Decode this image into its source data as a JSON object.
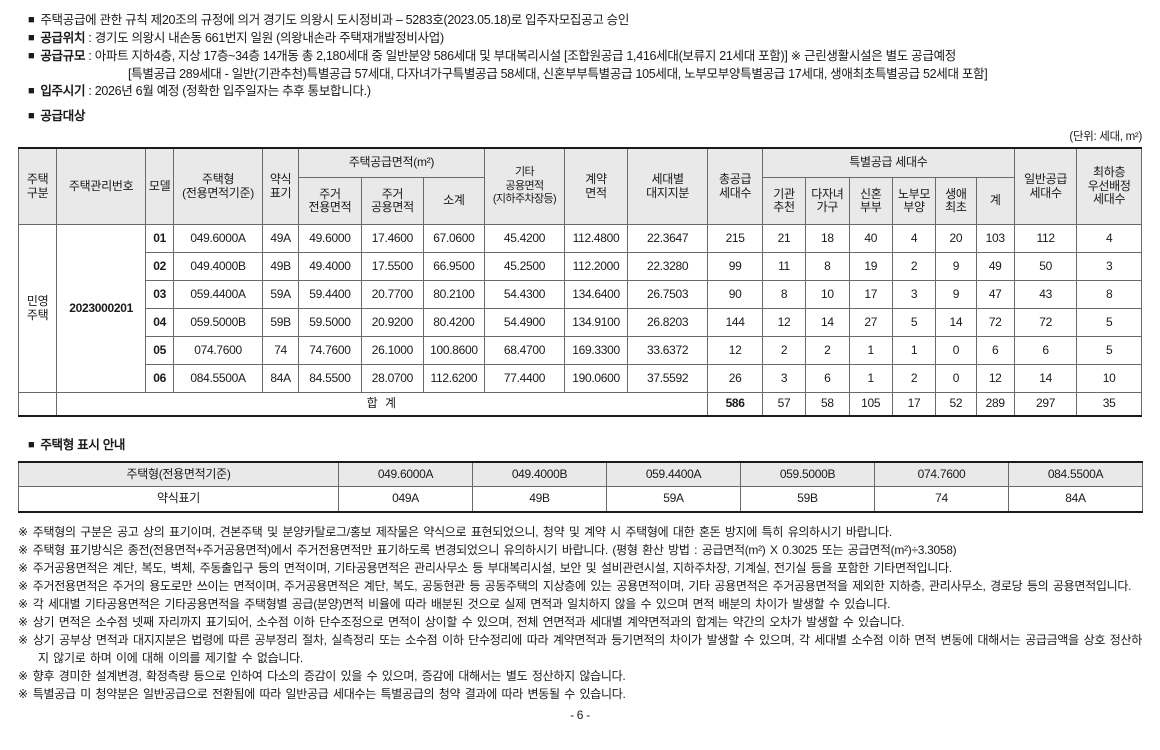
{
  "doc": {
    "unit_note": "(단위: 세대, m²)",
    "page_number": "- 6 -"
  },
  "header_bullets": [
    {
      "bold": "",
      "text": "주택공급에 관한 규칙 제20조의 규정에 의거 경기도 의왕시 도시정비과 – 5283호(2023.05.18)로 입주자모집공고 승인"
    },
    {
      "bold": "공급위치",
      "text": " : 경기도 의왕시 내손동 661번지 일원 (의왕내손라 주택재개발정비사업)"
    },
    {
      "bold": "공급규모",
      "text": " : 아파트 지하4층, 지상 17층~34층 14개동 총 2,180세대 중 일반분양 586세대 및 부대복리시설 [조합원공급 1,416세대(보류지 21세대 포함)] ※ 근린생활시설은 별도 공급예정",
      "cont": "[특별공급 289세대 - 일반(기관추천)특별공급 57세대, 다자녀가구특별공급 58세대, 신혼부부특별공급 105세대, 노부모부양특별공급 17세대, 생애최초특별공급 52세대 포함]"
    },
    {
      "bold": "입주시기",
      "text": " : 2026년 6월 예정 (정확한 입주일자는 추후 통보합니다.)"
    }
  ],
  "supply_section": {
    "title": "공급대상"
  },
  "supply_table": {
    "h": {
      "gubun": "주택\n구분",
      "mgmt": "주택관리번호",
      "model": "모델",
      "type": "주택형\n(전용면적기준)",
      "abbr": "약식\n표기",
      "supply_area_group": "주택공급면적(m²)",
      "exclusive": "주거\n전용면적",
      "common": "주거\n공용면적",
      "subtotal": "소계",
      "other": "기타\n공용면적\n(지하주차장등)",
      "contract": "계약\n면적",
      "land": "세대별\n대지지분",
      "total": "총공급\n세대수",
      "special_group": "특별공급 세대수",
      "sp1": "기관\n추천",
      "sp2": "다자녀\n가구",
      "sp3": "신혼\n부부",
      "sp4": "노부모\n부양",
      "sp5": "생애\n최초",
      "sp6": "계",
      "general": "일반공급\n세대수",
      "floor": "최하층\n우선배정\n세대수"
    },
    "housing_class": "민영\n주택",
    "management_number": "2023000201",
    "rows": [
      [
        "01",
        "049.6000A",
        "49A",
        "49.6000",
        "17.4600",
        "67.0600",
        "45.4200",
        "112.4800",
        "22.3647",
        "215",
        "21",
        "18",
        "40",
        "4",
        "20",
        "103",
        "112",
        "4"
      ],
      [
        "02",
        "049.4000B",
        "49B",
        "49.4000",
        "17.5500",
        "66.9500",
        "45.2500",
        "112.2000",
        "22.3280",
        "99",
        "11",
        "8",
        "19",
        "2",
        "9",
        "49",
        "50",
        "3"
      ],
      [
        "03",
        "059.4400A",
        "59A",
        "59.4400",
        "20.7700",
        "80.2100",
        "54.4300",
        "134.6400",
        "26.7503",
        "90",
        "8",
        "10",
        "17",
        "3",
        "9",
        "47",
        "43",
        "8"
      ],
      [
        "04",
        "059.5000B",
        "59B",
        "59.5000",
        "20.9200",
        "80.4200",
        "54.4900",
        "134.9100",
        "26.8203",
        "144",
        "12",
        "14",
        "27",
        "5",
        "14",
        "72",
        "72",
        "5"
      ],
      [
        "05",
        "074.7600",
        "74",
        "74.7600",
        "26.1000",
        "100.8600",
        "68.4700",
        "169.3300",
        "33.6372",
        "12",
        "2",
        "2",
        "1",
        "1",
        "0",
        "6",
        "6",
        "5"
      ],
      [
        "06",
        "084.5500A",
        "84A",
        "84.5500",
        "28.0700",
        "112.6200",
        "77.4400",
        "190.0600",
        "37.5592",
        "26",
        "3",
        "6",
        "1",
        "2",
        "0",
        "12",
        "14",
        "10"
      ]
    ],
    "total_row": {
      "label": "합 계",
      "total_units": "586",
      "special": [
        "57",
        "58",
        "105",
        "17",
        "52",
        "289"
      ],
      "general": "297",
      "ground_floor": "35"
    }
  },
  "type_table": {
    "title": "주택형 표시 안내",
    "row1_label": "주택형(전용면적기준)",
    "row2_label": "약식표기",
    "types": [
      "049.6000A",
      "049.4000B",
      "059.4400A",
      "059.5000B",
      "074.7600",
      "084.5500A"
    ],
    "abbrs": [
      "049A",
      "49B",
      "59A",
      "59B",
      "74",
      "84A"
    ]
  },
  "notes": [
    "주택형의 구분은 공고 상의 표기이며, 견본주택 및 분양카탈로그/홍보 제작물은 약식으로 표현되었으니, 청약 및 계약 시 주택형에 대한 혼돈 방지에 특히 유의하시기 바랍니다.",
    "주택형 표기방식은 종전(전용면적+주거공용면적)에서 주거전용면적만 표기하도록 변경되었으니 유의하시기 바랍니다. (평형 환산 방법 : 공급면적(m²) X 0.3025 또는 공급면적(m²)÷3.3058)",
    "주거공용면적은 계단, 복도, 벽체, 주동출입구 등의 면적이며, 기타공용면적은 관리사무소 등 부대복리시설, 보안 및 설비관련시설, 지하주차장, 기계실, 전기실 등을 포함한 기타면적입니다.",
    "주거전용면적은 주거의 용도로만 쓰이는 면적이며, 주거공용면적은 계단, 복도, 공동현관 등 공동주택의 지상층에 있는 공용면적이며, 기타 공용면적은 주거공용면적을 제외한 지하층, 관리사무소, 경로당 등의 공용면적입니다.",
    "각 세대별 기타공용면적은 기타공용면적을 주택형별 공급(분양)면적 비율에 따라 배분된 것으로 실제 면적과 일치하지 않을 수 있으며 면적 배분의 차이가 발생할 수 있습니다.",
    "상기 면적은 소수점 넷째 자리까지 표기되어, 소수점 이하 단수조정으로 면적이 상이할 수 있으며, 전체 연면적과 세대별 계약면적과의 합계는 약간의 오차가 발생할 수 있습니다.",
    "상기 공부상 면적과 대지지분은 법령에 따른 공부정리 절차, 실측정리 또는 소수점 이하 단수정리에 따라 계약면적과 등기면적의 차이가 발생할 수 있으며, 각 세대별 소수점 이하 면적 변동에 대해서는 공급금액을 상호 정산하지 않기로 하며 이에 대해 이의를 제기할 수 없습니다.",
    "향후 경미한 설계변경, 확정측량 등으로 인하여 다소의 증감이 있을 수 있으며, 증감에 대해서는 별도 정산하지 않습니다.",
    "특별공급 미 청약분은 일반공급으로 전환됨에 따라 일반공급 세대수는 특별공급의 청약 결과에 따라 변동될 수 있습니다."
  ]
}
